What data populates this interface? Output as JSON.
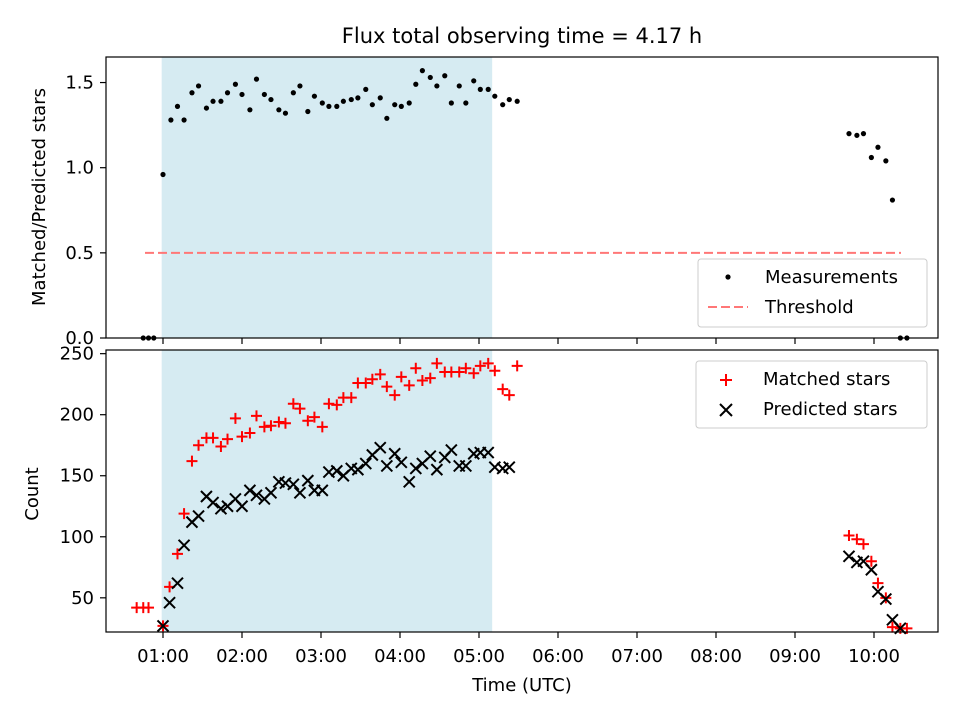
{
  "chart_data": {
    "title": "Flux total observing time = 4.17 h",
    "xlabel": "Time (UTC)",
    "x_ticks": [
      "01:00",
      "02:00",
      "03:00",
      "04:00",
      "05:00",
      "06:00",
      "07:00",
      "08:00",
      "09:00",
      "10:00"
    ],
    "observing_window": [
      "00:59",
      "05:10"
    ],
    "panels": [
      {
        "type": "scatter",
        "ylabel": "Matched/Predicted stars",
        "ylim": [
          0,
          1.65
        ],
        "y_ticks": [
          0.0,
          0.5,
          1.0,
          1.5
        ],
        "threshold": 0.5,
        "legend": {
          "position": "lower-right",
          "entries": [
            "Measurements",
            "Threshold"
          ]
        },
        "series": [
          {
            "name": "Measurements",
            "marker": "dot",
            "color": "#000000",
            "points": [
              [
                "00:45",
                0.0
              ],
              [
                "00:49",
                0.0
              ],
              [
                "00:53",
                0.0
              ],
              [
                "01:00",
                0.96
              ],
              [
                "01:06",
                1.28
              ],
              [
                "01:11",
                1.36
              ],
              [
                "01:16",
                1.28
              ],
              [
                "01:22",
                1.44
              ],
              [
                "01:27",
                1.48
              ],
              [
                "01:33",
                1.35
              ],
              [
                "01:38",
                1.39
              ],
              [
                "01:44",
                1.39
              ],
              [
                "01:49",
                1.44
              ],
              [
                "01:55",
                1.49
              ],
              [
                "02:00",
                1.43
              ],
              [
                "02:06",
                1.34
              ],
              [
                "02:11",
                1.52
              ],
              [
                "02:17",
                1.43
              ],
              [
                "02:22",
                1.4
              ],
              [
                "02:28",
                1.34
              ],
              [
                "02:33",
                1.32
              ],
              [
                "02:39",
                1.44
              ],
              [
                "02:44",
                1.48
              ],
              [
                "02:50",
                1.33
              ],
              [
                "02:55",
                1.42
              ],
              [
                "03:01",
                1.38
              ],
              [
                "03:06",
                1.36
              ],
              [
                "03:12",
                1.36
              ],
              [
                "03:17",
                1.39
              ],
              [
                "03:23",
                1.4
              ],
              [
                "03:28",
                1.41
              ],
              [
                "03:34",
                1.46
              ],
              [
                "03:39",
                1.37
              ],
              [
                "03:45",
                1.41
              ],
              [
                "03:50",
                1.29
              ],
              [
                "03:56",
                1.37
              ],
              [
                "04:01",
                1.36
              ],
              [
                "04:07",
                1.38
              ],
              [
                "04:12",
                1.49
              ],
              [
                "04:17",
                1.57
              ],
              [
                "04:23",
                1.53
              ],
              [
                "04:28",
                1.48
              ],
              [
                "04:34",
                1.54
              ],
              [
                "04:39",
                1.38
              ],
              [
                "04:45",
                1.48
              ],
              [
                "04:50",
                1.38
              ],
              [
                "04:56",
                1.51
              ],
              [
                "05:01",
                1.46
              ],
              [
                "05:07",
                1.46
              ],
              [
                "05:12",
                1.42
              ],
              [
                "05:18",
                1.37
              ],
              [
                "05:23",
                1.4
              ],
              [
                "05:29",
                1.39
              ],
              [
                "09:41",
                1.2
              ],
              [
                "09:47",
                1.19
              ],
              [
                "09:52",
                1.2
              ],
              [
                "09:58",
                1.06
              ],
              [
                "10:03",
                1.12
              ],
              [
                "10:09",
                1.04
              ],
              [
                "10:14",
                0.81
              ],
              [
                "10:20",
                0.0
              ],
              [
                "10:25",
                0.0
              ]
            ]
          }
        ]
      },
      {
        "type": "scatter",
        "ylabel": "Count",
        "ylim": [
          22,
          253
        ],
        "y_ticks": [
          50,
          100,
          150,
          200,
          250
        ],
        "legend": {
          "position": "top-right",
          "entries": [
            "Matched stars",
            "Predicted stars"
          ]
        },
        "series": [
          {
            "name": "Matched stars",
            "marker": "plus",
            "color": "#ff0000",
            "points": [
              [
                "00:40",
                42
              ],
              [
                "00:45",
                42
              ],
              [
                "00:49",
                42
              ],
              [
                "01:00",
                27
              ],
              [
                "01:05",
                59
              ],
              [
                "01:11",
                86
              ],
              [
                "01:16",
                119
              ],
              [
                "01:22",
                162
              ],
              [
                "01:27",
                175
              ],
              [
                "01:33",
                181
              ],
              [
                "01:38",
                181
              ],
              [
                "01:44",
                174
              ],
              [
                "01:49",
                180
              ],
              [
                "01:55",
                197
              ],
              [
                "02:00",
                182
              ],
              [
                "02:06",
                185
              ],
              [
                "02:11",
                199
              ],
              [
                "02:17",
                190
              ],
              [
                "02:22",
                191
              ],
              [
                "02:28",
                194
              ],
              [
                "02:33",
                193
              ],
              [
                "02:39",
                209
              ],
              [
                "02:44",
                205
              ],
              [
                "02:50",
                195
              ],
              [
                "02:55",
                198
              ],
              [
                "03:01",
                190
              ],
              [
                "03:06",
                209
              ],
              [
                "03:12",
                208
              ],
              [
                "03:17",
                214
              ],
              [
                "03:23",
                214
              ],
              [
                "03:28",
                226
              ],
              [
                "03:34",
                226
              ],
              [
                "03:39",
                229
              ],
              [
                "03:45",
                233
              ],
              [
                "03:50",
                223
              ],
              [
                "03:56",
                216
              ],
              [
                "04:01",
                231
              ],
              [
                "04:07",
                224
              ],
              [
                "04:12",
                238
              ],
              [
                "04:17",
                228
              ],
              [
                "04:23",
                230
              ],
              [
                "04:28",
                242
              ],
              [
                "04:34",
                235
              ],
              [
                "04:39",
                235
              ],
              [
                "04:45",
                235
              ],
              [
                "04:50",
                238
              ],
              [
                "04:56",
                234
              ],
              [
                "05:01",
                240
              ],
              [
                "05:07",
                242
              ],
              [
                "05:12",
                236
              ],
              [
                "05:18",
                221
              ],
              [
                "05:23",
                216
              ],
              [
                "05:29",
                240
              ],
              [
                "09:41",
                101
              ],
              [
                "09:47",
                98
              ],
              [
                "09:52",
                94
              ],
              [
                "09:58",
                80
              ],
              [
                "10:03",
                62
              ],
              [
                "10:09",
                50
              ],
              [
                "10:14",
                26
              ],
              [
                "10:20",
                25
              ],
              [
                "10:25",
                25
              ]
            ]
          },
          {
            "name": "Predicted stars",
            "marker": "x",
            "color": "#000000",
            "points": [
              [
                "01:00",
                27
              ],
              [
                "01:05",
                46
              ],
              [
                "01:11",
                62
              ],
              [
                "01:16",
                93
              ],
              [
                "01:22",
                112
              ],
              [
                "01:27",
                117
              ],
              [
                "01:33",
                133
              ],
              [
                "01:38",
                128
              ],
              [
                "01:44",
                123
              ],
              [
                "01:49",
                125
              ],
              [
                "01:55",
                131
              ],
              [
                "02:00",
                125
              ],
              [
                "02:06",
                138
              ],
              [
                "02:11",
                134
              ],
              [
                "02:17",
                131
              ],
              [
                "02:22",
                136
              ],
              [
                "02:28",
                145
              ],
              [
                "02:33",
                144
              ],
              [
                "02:39",
                143
              ],
              [
                "02:44",
                136
              ],
              [
                "02:50",
                146
              ],
              [
                "02:55",
                138
              ],
              [
                "03:01",
                138
              ],
              [
                "03:06",
                153
              ],
              [
                "03:12",
                154
              ],
              [
                "03:17",
                150
              ],
              [
                "03:23",
                156
              ],
              [
                "03:28",
                155
              ],
              [
                "03:34",
                160
              ],
              [
                "03:39",
                167
              ],
              [
                "03:45",
                173
              ],
              [
                "03:50",
                158
              ],
              [
                "03:56",
                168
              ],
              [
                "04:01",
                161
              ],
              [
                "04:07",
                145
              ],
              [
                "04:12",
                156
              ],
              [
                "04:17",
                160
              ],
              [
                "04:23",
                166
              ],
              [
                "04:28",
                155
              ],
              [
                "04:34",
                165
              ],
              [
                "04:39",
                171
              ],
              [
                "04:45",
                158
              ],
              [
                "04:50",
                158
              ],
              [
                "04:56",
                168
              ],
              [
                "05:01",
                169
              ],
              [
                "05:07",
                169
              ],
              [
                "05:12",
                157
              ],
              [
                "05:18",
                156
              ],
              [
                "05:23",
                157
              ],
              [
                "09:41",
                84
              ],
              [
                "09:47",
                79
              ],
              [
                "09:52",
                80
              ],
              [
                "09:58",
                73
              ],
              [
                "10:03",
                55
              ],
              [
                "10:09",
                49
              ],
              [
                "10:14",
                32
              ],
              [
                "10:20",
                25
              ]
            ]
          }
        ]
      }
    ]
  }
}
